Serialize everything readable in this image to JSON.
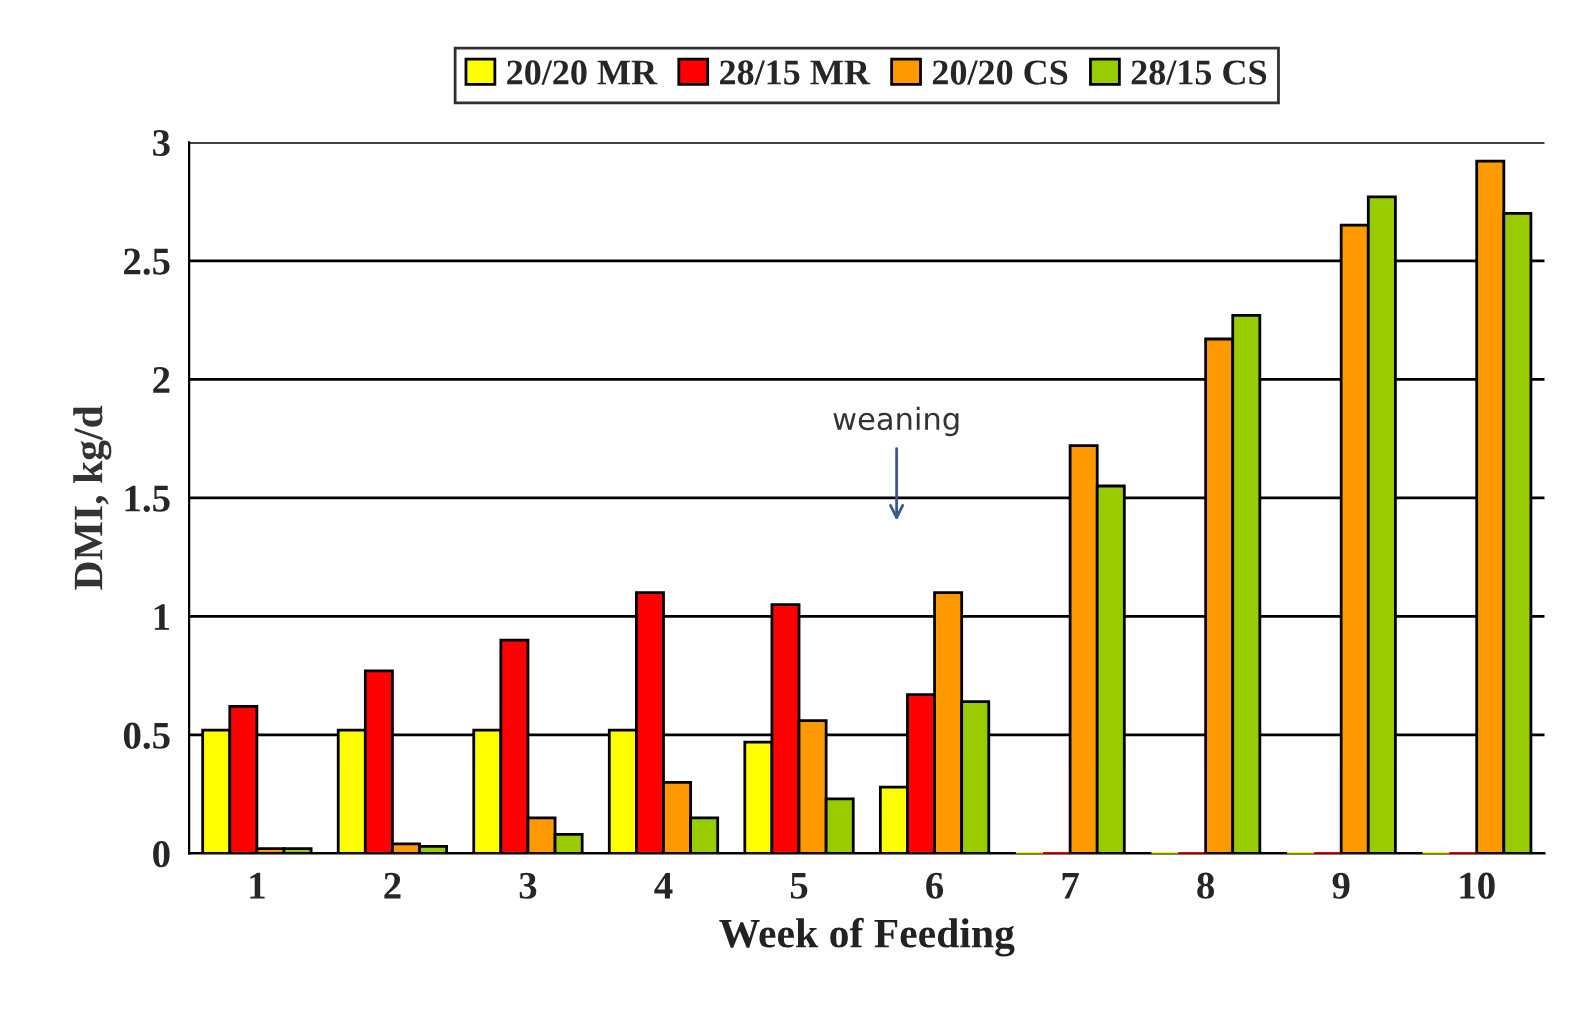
{
  "chart_data": {
    "type": "bar",
    "xlabel": "Week of Feeding",
    "ylabel": "DMI, kg/d",
    "categories": [
      "1",
      "2",
      "3",
      "4",
      "5",
      "6",
      "7",
      "8",
      "9",
      "10"
    ],
    "series": [
      {
        "name": "20/20 MR",
        "color": "#ffff00",
        "values": [
          0.52,
          0.52,
          0.52,
          0.52,
          0.47,
          0.28,
          0,
          0,
          0,
          0
        ]
      },
      {
        "name": "28/15 MR",
        "color": "#ff0000",
        "values": [
          0.62,
          0.77,
          0.9,
          1.1,
          1.05,
          0.67,
          0,
          0,
          0,
          0
        ]
      },
      {
        "name": "20/20 CS",
        "color": "#ff9900",
        "values": [
          0.02,
          0.04,
          0.15,
          0.3,
          0.56,
          1.1,
          1.72,
          2.17,
          2.65,
          2.92
        ]
      },
      {
        "name": "28/15 CS",
        "color": "#99cc00",
        "values": [
          0.02,
          0.03,
          0.08,
          0.15,
          0.23,
          0.64,
          1.55,
          2.27,
          2.77,
          2.7
        ]
      }
    ],
    "ylim": [
      0,
      3
    ],
    "yticks": [
      0,
      0.5,
      1,
      1.5,
      2,
      2.5,
      3
    ],
    "grid": "y",
    "legend": "top",
    "annotations": [
      "weaning"
    ]
  }
}
